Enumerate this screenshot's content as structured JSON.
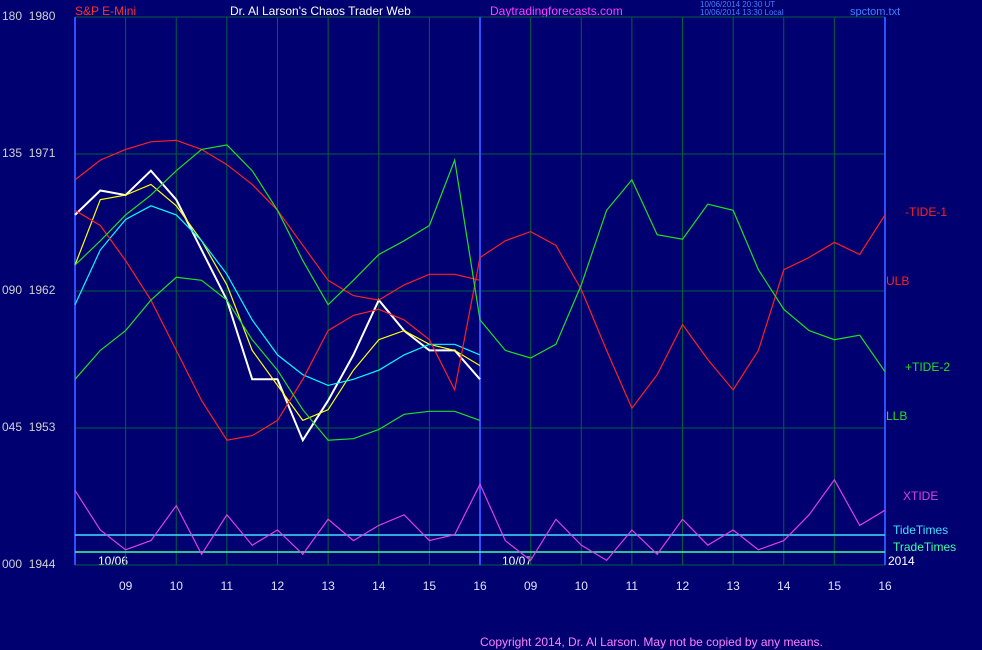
{
  "chart_data": {
    "type": "line",
    "symbol": "S&P E-Mini",
    "title": "Dr. Al Larson's Chaos Trader Web",
    "site": "Daytradingforecasts.com",
    "timestamps": [
      "10/06/2014 20:30 UT",
      "10/06/2014 13:30 Local"
    ],
    "file": "spctom.txt",
    "copyright": "Copyright 2014, Dr. Al Larson. May not be copied by any means.",
    "date_labels": [
      "10/06",
      "10/07",
      "2014"
    ],
    "xlim": [
      0,
      16
    ],
    "xticks": [
      {
        "value": 1,
        "label": "09"
      },
      {
        "value": 2,
        "label": "10"
      },
      {
        "value": 3,
        "label": "11"
      },
      {
        "value": 4,
        "label": "12"
      },
      {
        "value": 5,
        "label": "13"
      },
      {
        "value": 6,
        "label": "14"
      },
      {
        "value": 7,
        "label": "15"
      },
      {
        "value": 8,
        "label": "16"
      },
      {
        "value": 9,
        "label": "09"
      },
      {
        "value": 10,
        "label": "10"
      },
      {
        "value": 11,
        "label": "11"
      },
      {
        "value": 12,
        "label": "12"
      },
      {
        "value": 13,
        "label": "13"
      },
      {
        "value": 14,
        "label": "14"
      },
      {
        "value": 15,
        "label": "15"
      },
      {
        "value": 16,
        "label": "16"
      }
    ],
    "ylim": [
      1944,
      1980
    ],
    "yticks": [
      {
        "value": 1980,
        "label": "180  1980"
      },
      {
        "value": 1971,
        "label": "135  1971"
      },
      {
        "value": 1962,
        "label": "090  1962"
      },
      {
        "value": 1953,
        "label": "045  1953"
      },
      {
        "value": 1944,
        "label": "000  1944"
      }
    ],
    "grid": true,
    "x": [
      0,
      0.5,
      1,
      1.5,
      2,
      2.5,
      3,
      3.5,
      4,
      4.5,
      5,
      5.5,
      6,
      6.5,
      7,
      7.5,
      8,
      8.5,
      9,
      9.5,
      10,
      10.5,
      11,
      11.5,
      12,
      12.5,
      13,
      13.5,
      14,
      14.5,
      15,
      15.5,
      16
    ],
    "series": [
      {
        "color": "#ffffff",
        "values": [
          1967.0,
          1968.6,
          1968.3,
          1969.9,
          1968.0,
          1964.7,
          1961.4,
          1956.2,
          1956.2,
          1952.2,
          1954.8,
          1957.8,
          1961.4,
          1959.4,
          1958.1,
          1958.1,
          1956.2,
          null,
          null,
          null,
          null,
          null,
          null,
          null,
          null,
          null,
          null,
          null,
          null,
          null,
          null,
          null,
          null
        ]
      },
      {
        "color": "#ffff00",
        "values": [
          1963.7,
          1968.0,
          1968.3,
          1969.0,
          1967.6,
          1965.3,
          1962.4,
          1958.1,
          1955.8,
          1953.5,
          1954.2,
          1956.8,
          1958.8,
          1959.4,
          1958.5,
          1958.1,
          1957.1,
          null,
          null,
          null,
          null,
          null,
          null,
          null,
          null,
          null,
          null,
          null,
          null,
          null,
          null,
          null,
          null
        ]
      },
      {
        "color": "#00ffff",
        "values": [
          1961.1,
          1964.7,
          1966.7,
          1967.6,
          1967.0,
          1965.3,
          1963.1,
          1960.1,
          1957.8,
          1956.5,
          1955.8,
          1956.2,
          1956.8,
          1957.8,
          1958.5,
          1958.5,
          1957.8,
          null,
          null,
          null,
          null,
          null,
          null,
          null,
          null,
          null,
          null,
          null,
          null,
          null,
          null,
          null,
          null
        ]
      },
      {
        "name": "-TIDE-1",
        "color": "#ff2020",
        "values": [
          1967.3,
          1966.3,
          1964.0,
          1961.4,
          1958.1,
          1954.8,
          1952.2,
          1952.5,
          1953.5,
          1956.2,
          1959.4,
          1960.4,
          1960.8,
          1960.1,
          1958.8,
          1955.5,
          1964.2,
          1965.3,
          1965.9,
          1965.0,
          1962.1,
          1958.1,
          1954.3,
          1956.5,
          1959.8,
          1957.5,
          1955.5,
          1958.1,
          1963.4,
          1964.2,
          1965.2,
          1964.4,
          1967.0
        ]
      },
      {
        "name": "ULB",
        "color": "#ff2020",
        "values": [
          1969.3,
          1970.6,
          1971.3,
          1971.8,
          1971.9,
          1971.3,
          1970.3,
          1969.0,
          1967.3,
          1965.0,
          1962.7,
          1961.7,
          1961.4,
          1962.4,
          1963.1,
          1963.1,
          1962.7,
          null,
          null,
          null,
          null,
          null,
          null,
          null,
          null,
          null,
          null,
          null,
          null,
          null,
          null,
          null,
          null
        ]
      },
      {
        "name": "+TIDE-2",
        "color": "#20e020",
        "values": [
          1963.7,
          1965.3,
          1967.0,
          1968.3,
          1969.9,
          1971.3,
          1971.6,
          1969.9,
          1967.3,
          1964.0,
          1961.1,
          1962.7,
          1964.4,
          1965.3,
          1966.3,
          1970.6,
          1960.1,
          1958.1,
          1957.6,
          1958.5,
          1962.4,
          1967.3,
          1969.3,
          1965.7,
          1965.4,
          1967.7,
          1967.3,
          1963.4,
          1960.8,
          1959.4,
          1958.8,
          1959.1,
          1956.7
        ]
      },
      {
        "name": "LLB",
        "color": "#20e020",
        "values": [
          1956.2,
          1958.1,
          1959.4,
          1961.4,
          1962.9,
          1962.7,
          1961.4,
          1958.8,
          1956.8,
          1954.2,
          1952.2,
          1952.3,
          1952.9,
          1953.9,
          1954.1,
          1954.1,
          1953.5,
          null,
          null,
          null,
          null,
          null,
          null,
          null,
          null,
          null,
          null,
          null,
          null,
          null,
          null,
          null,
          null
        ]
      },
      {
        "name": "XTIDE",
        "color": "#e040e0",
        "values": [
          1948.9,
          1946.3,
          1945.0,
          1945.6,
          1947.9,
          1944.7,
          1947.3,
          1945.3,
          1946.3,
          1944.7,
          1947.0,
          1945.6,
          1946.6,
          1947.3,
          1945.6,
          1946.0,
          1949.3,
          1945.6,
          1944.3,
          1947.0,
          1945.3,
          1944.3,
          1946.3,
          1944.7,
          1947.0,
          1945.3,
          1946.3,
          1945.0,
          1945.6,
          1947.3,
          1949.6,
          1946.6,
          1947.6
        ]
      }
    ],
    "timelines": [
      {
        "name": "TideTimes",
        "color": "#40e0ff"
      },
      {
        "name": "TradeTimes",
        "color": "#40ffa0"
      }
    ]
  }
}
